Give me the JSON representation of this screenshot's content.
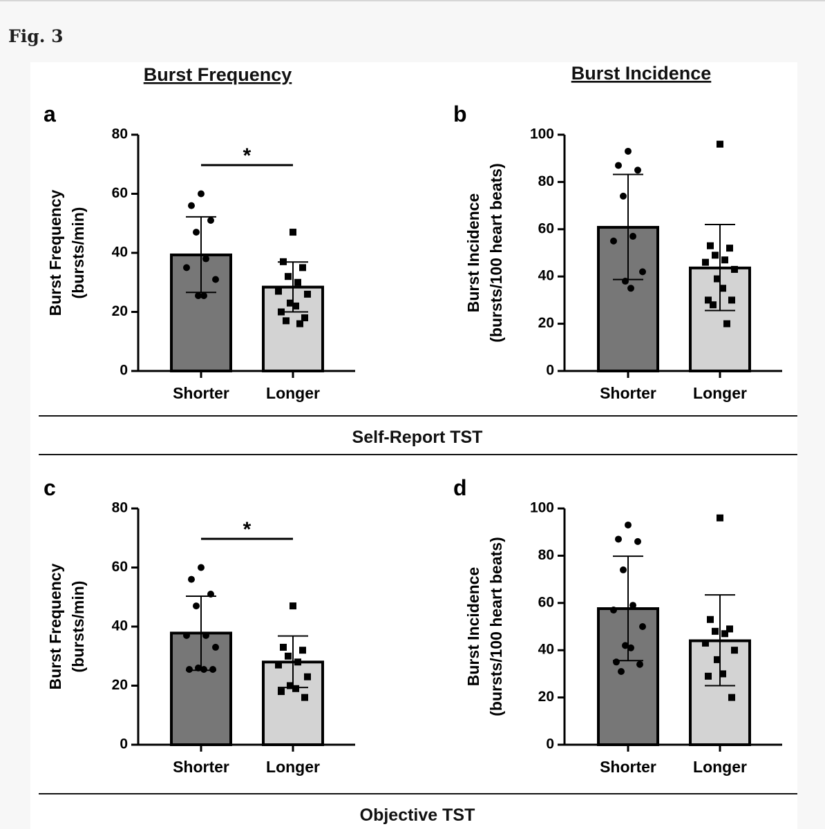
{
  "page": {
    "figure_label": "Fig. 3"
  },
  "column_titles": [
    "Burst Frequency",
    "Burst Incidence"
  ],
  "row_labels": [
    "Self-Report TST",
    "Objective TST"
  ],
  "colors": {
    "shorter": "#777777",
    "longer": "#d3d3d3",
    "ink": "#000000"
  },
  "chart_data": [
    {
      "panel": "a",
      "type": "bar",
      "ylabel_lines": [
        "Burst Frequency",
        "(bursts/min)"
      ],
      "categories": [
        "Shorter",
        "Longer"
      ],
      "ylim": [
        0,
        80
      ],
      "yticks": [
        0,
        20,
        40,
        60,
        80
      ],
      "means": [
        39.3,
        28.4
      ],
      "sd_low": [
        26.6,
        20.0
      ],
      "sd_high": [
        52.2,
        36.9
      ],
      "points": [
        [
          60,
          56,
          51,
          47,
          38,
          35,
          31,
          25.5,
          25.5
        ],
        [
          47,
          37,
          35,
          32,
          30,
          27,
          26,
          23,
          22,
          20,
          18,
          17,
          16
        ]
      ],
      "significance": "*"
    },
    {
      "panel": "b",
      "type": "bar",
      "ylabel_lines": [
        "Burst Incidence",
        "(bursts/100 heart beats)"
      ],
      "categories": [
        "Shorter",
        "Longer"
      ],
      "ylim": [
        0,
        100
      ],
      "yticks": [
        0,
        20,
        40,
        60,
        80,
        100
      ],
      "means": [
        60.8,
        43.6
      ],
      "sd_low": [
        38.7,
        25.6
      ],
      "sd_high": [
        83.2,
        62.0
      ],
      "points": [
        [
          93,
          87,
          85,
          74,
          57,
          55,
          42,
          38,
          35
        ],
        [
          96,
          53,
          52,
          49,
          47,
          46,
          43,
          39,
          35,
          30,
          30,
          28,
          20
        ]
      ],
      "significance": ""
    },
    {
      "panel": "c",
      "type": "bar",
      "ylabel_lines": [
        "Burst Frequency",
        "(bursts/min)"
      ],
      "categories": [
        "Shorter",
        "Longer"
      ],
      "ylim": [
        0,
        80
      ],
      "yticks": [
        0,
        20,
        40,
        60,
        80
      ],
      "means": [
        37.8,
        28.0
      ],
      "sd_low": [
        25.2,
        19.4
      ],
      "sd_high": [
        50.3,
        36.8
      ],
      "points": [
        [
          60,
          56,
          51,
          47,
          37,
          37,
          33,
          26,
          25.5,
          25.5,
          25.5
        ],
        [
          47,
          33,
          32,
          30,
          28,
          27,
          23,
          20,
          19,
          18,
          16
        ]
      ],
      "significance": "*"
    },
    {
      "panel": "d",
      "type": "bar",
      "ylabel_lines": [
        "Burst Incidence",
        "(bursts/100 heart beats)"
      ],
      "categories": [
        "Shorter",
        "Longer"
      ],
      "ylim": [
        0,
        100
      ],
      "yticks": [
        0,
        20,
        40,
        60,
        80,
        100
      ],
      "means": [
        57.6,
        44.0
      ],
      "sd_low": [
        35.6,
        25.0
      ],
      "sd_high": [
        79.8,
        63.4
      ],
      "points": [
        [
          93,
          87,
          86,
          74,
          59,
          57,
          50,
          42,
          41,
          35,
          34,
          31
        ],
        [
          96,
          53,
          49,
          48,
          47,
          43,
          40,
          36,
          30,
          29,
          20
        ]
      ],
      "significance": ""
    }
  ]
}
